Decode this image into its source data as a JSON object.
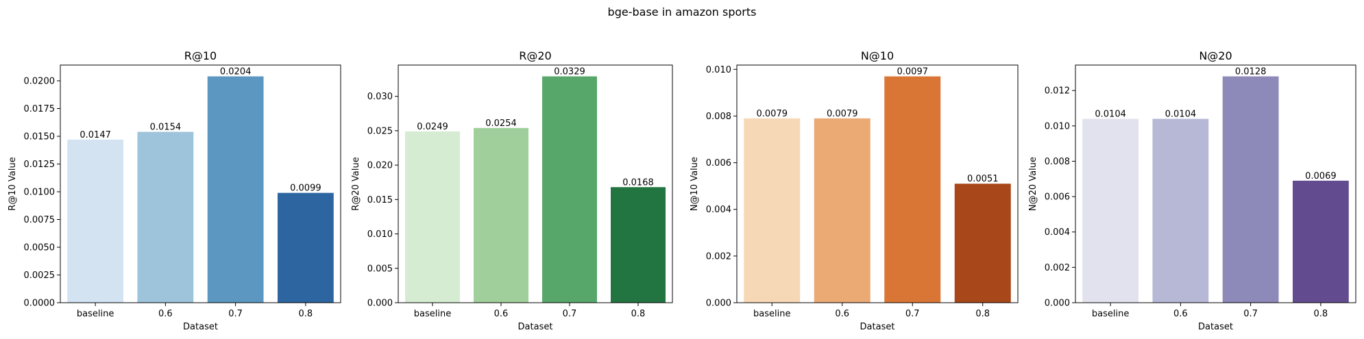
{
  "figure": {
    "title": "bge-base in amazon sports"
  },
  "chart_data": [
    {
      "type": "bar",
      "title": "R@10",
      "xlabel": "Dataset",
      "ylabel": "R@10 Value",
      "categories": [
        "baseline",
        "0.6",
        "0.7",
        "0.8"
      ],
      "values": [
        0.0147,
        0.0154,
        0.0204,
        0.0099
      ],
      "value_labels": [
        "0.0147",
        "0.0154",
        "0.0204",
        "0.0099"
      ],
      "ylim": [
        0,
        0.02142
      ],
      "yticks": [
        0,
        0.0025,
        0.005,
        0.0075,
        0.01,
        0.0125,
        0.015,
        0.0175,
        0.02
      ],
      "ytick_labels": [
        "0.0000",
        "0.0025",
        "0.0050",
        "0.0075",
        "0.0100",
        "0.0125",
        "0.0150",
        "0.0175",
        "0.0200"
      ],
      "colors": [
        "#d3e3f2",
        "#9ec4db",
        "#5b97c0",
        "#2c65a0"
      ]
    },
    {
      "type": "bar",
      "title": "R@20",
      "xlabel": "Dataset",
      "ylabel": "R@20 Value",
      "categories": [
        "baseline",
        "0.6",
        "0.7",
        "0.8"
      ],
      "values": [
        0.0249,
        0.0254,
        0.0329,
        0.0168
      ],
      "value_labels": [
        "0.0249",
        "0.0254",
        "0.0329",
        "0.0168"
      ],
      "ylim": [
        0,
        0.034545
      ],
      "yticks": [
        0,
        0.005,
        0.01,
        0.015,
        0.02,
        0.025,
        0.03
      ],
      "ytick_labels": [
        "0.000",
        "0.005",
        "0.010",
        "0.015",
        "0.020",
        "0.025",
        "0.030"
      ],
      "colors": [
        "#d6ecd2",
        "#a0cf9b",
        "#58a76a",
        "#227440"
      ]
    },
    {
      "type": "bar",
      "title": "N@10",
      "xlabel": "Dataset",
      "ylabel": "N@10 Value",
      "categories": [
        "baseline",
        "0.6",
        "0.7",
        "0.8"
      ],
      "values": [
        0.0079,
        0.0079,
        0.0097,
        0.0051
      ],
      "value_labels": [
        "0.0079",
        "0.0079",
        "0.0097",
        "0.0051"
      ],
      "ylim": [
        0,
        0.010185
      ],
      "yticks": [
        0,
        0.002,
        0.004,
        0.006,
        0.008,
        0.01
      ],
      "ytick_labels": [
        "0.000",
        "0.002",
        "0.004",
        "0.006",
        "0.008",
        "0.010"
      ],
      "colors": [
        "#f6d8b7",
        "#eba974",
        "#da7635",
        "#a84719"
      ]
    },
    {
      "type": "bar",
      "title": "N@20",
      "xlabel": "Dataset",
      "ylabel": "N@20 Value",
      "categories": [
        "baseline",
        "0.6",
        "0.7",
        "0.8"
      ],
      "values": [
        0.0104,
        0.0104,
        0.0128,
        0.0069
      ],
      "value_labels": [
        "0.0104",
        "0.0104",
        "0.0128",
        "0.0069"
      ],
      "ylim": [
        0,
        0.01344
      ],
      "yticks": [
        0,
        0.002,
        0.004,
        0.006,
        0.008,
        0.01,
        0.012
      ],
      "ytick_labels": [
        "0.000",
        "0.002",
        "0.004",
        "0.006",
        "0.008",
        "0.010",
        "0.012"
      ],
      "colors": [
        "#e2e1ee",
        "#b7b8d6",
        "#8d89b9",
        "#624b8e"
      ]
    }
  ]
}
